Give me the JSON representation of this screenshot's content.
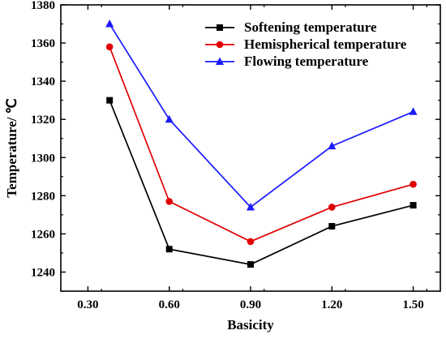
{
  "chart_data": {
    "type": "line",
    "title": "",
    "xlabel": "Basicity",
    "ylabel": "Temperature/ ℃",
    "x": [
      0.38,
      0.6,
      0.9,
      1.2,
      1.5
    ],
    "xlim": [
      0.2,
      1.6
    ],
    "ylim": [
      1230,
      1380
    ],
    "xticks": [
      0.3,
      0.6,
      0.9,
      1.2,
      1.5
    ],
    "xtick_labels": [
      "0.30",
      "0.60",
      "0.90",
      "1.20",
      "1.50"
    ],
    "yticks": [
      1240,
      1260,
      1280,
      1300,
      1320,
      1340,
      1360,
      1380
    ],
    "ytick_labels": [
      "1240",
      "1260",
      "1280",
      "1300",
      "1320",
      "1340",
      "1360",
      "1380"
    ],
    "grid": false,
    "legend_position": "top-right",
    "series": [
      {
        "name": "Softening temperature",
        "color": "#000000",
        "marker": "square",
        "values": [
          1330,
          1252,
          1244,
          1264,
          1275
        ]
      },
      {
        "name": "Hemispherical temperature",
        "color": "#e00000",
        "marker": "circle",
        "values": [
          1358,
          1277,
          1256,
          1274,
          1286
        ]
      },
      {
        "name": "Flowing temperature",
        "color": "#1a1aff",
        "marker": "triangle",
        "values": [
          1370,
          1320,
          1274,
          1306,
          1324
        ]
      }
    ]
  }
}
